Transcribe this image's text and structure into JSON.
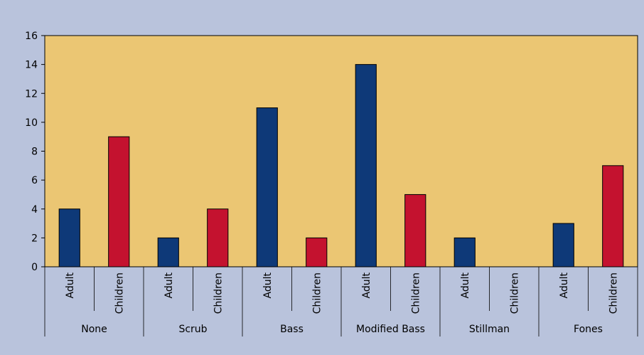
{
  "chart_data": {
    "type": "bar",
    "title": "",
    "xlabel": "",
    "ylabel": "",
    "ylim": [
      0,
      16
    ],
    "yticks": [
      0,
      2,
      4,
      6,
      8,
      10,
      12,
      14,
      16
    ],
    "grid": false,
    "legend": "none",
    "groups": [
      {
        "name": "None",
        "bars": [
          {
            "label": "Adult",
            "value": 4
          },
          {
            "label": "Children",
            "value": 9
          }
        ]
      },
      {
        "name": "Scrub",
        "bars": [
          {
            "label": "Adult",
            "value": 2
          },
          {
            "label": "Children",
            "value": 4
          }
        ]
      },
      {
        "name": "Bass",
        "bars": [
          {
            "label": "Adult",
            "value": 11
          },
          {
            "label": "Children",
            "value": 2
          }
        ]
      },
      {
        "name": "Modified Bass",
        "bars": [
          {
            "label": "Adult",
            "value": 14
          },
          {
            "label": "Children",
            "value": 5
          }
        ]
      },
      {
        "name": "Stillman",
        "bars": [
          {
            "label": "Adult",
            "value": 2
          },
          {
            "label": "Children",
            "value": 0
          }
        ]
      },
      {
        "name": "Fones",
        "bars": [
          {
            "label": "Adult",
            "value": 3
          },
          {
            "label": "Children",
            "value": 7
          }
        ]
      }
    ],
    "colors": {
      "Adult": "#0e3978",
      "Children": "#c4122f",
      "plot_background": "#ebc673",
      "page_background": "#b9c3dc"
    }
  }
}
